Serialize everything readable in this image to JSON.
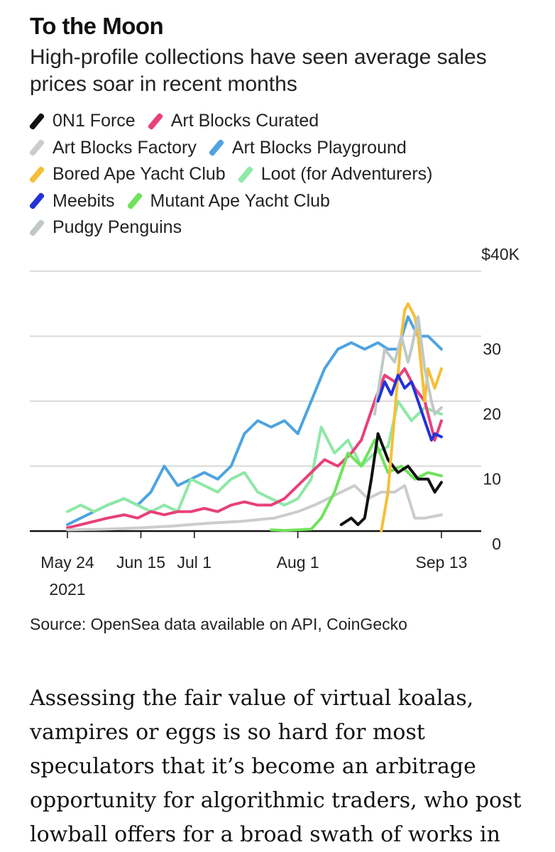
{
  "article": {
    "title": "To the Moon",
    "subtitle": "High-profile collections have seen average sales prices soar in recent months",
    "source": "Source: OpenSea data available on API, CoinGecko",
    "body": "Assessing the fair value of virtual koalas, vampires or eggs is so hard for most speculators that it’s become an arbitrage opportunity for algorithmic traders, who post lowball offers for a broad swath of works in"
  },
  "legend": {
    "rows": [
      [
        {
          "label": "0N1 Force",
          "color": "#111111"
        },
        {
          "label": "Art Blocks Curated",
          "color": "#e8407a"
        }
      ],
      [
        {
          "label": "Art Blocks Factory",
          "color": "#cccccc"
        },
        {
          "label": "Art Blocks Playground",
          "color": "#4fa3e0"
        }
      ],
      [
        {
          "label": "Bored Ape Yacht Club",
          "color": "#f5bf3a"
        },
        {
          "label": "Loot (for Adventurers)",
          "color": "#8ee8a6"
        }
      ],
      [
        {
          "label": "Meebits",
          "color": "#2333d6"
        },
        {
          "label": "Mutant Ape Yacht Club",
          "color": "#6fe35a"
        }
      ],
      [
        {
          "label": "Pudgy Penguins",
          "color": "#bfc9c6"
        }
      ]
    ]
  },
  "chart_data": {
    "type": "line",
    "title": "To the Moon",
    "ylabel": "",
    "ylim": [
      0,
      40
    ],
    "y_ticks": [
      {
        "value": 40,
        "label": "$40K"
      },
      {
        "value": 30,
        "label": "30"
      },
      {
        "value": 20,
        "label": "20"
      },
      {
        "value": 10,
        "label": "10"
      },
      {
        "value": 0,
        "label": "0"
      }
    ],
    "x_domain": [
      "2021-05-24",
      "2021-09-13"
    ],
    "x_ticks": [
      {
        "date": "2021-05-24",
        "label": "May 24",
        "sublabel": "2021"
      },
      {
        "date": "2021-06-15",
        "label": "Jun 15"
      },
      {
        "date": "2021-07-01",
        "label": "Jul 1"
      },
      {
        "date": "2021-08-01",
        "label": "Aug 1"
      },
      {
        "date": "2021-09-13",
        "label": "Sep 13"
      }
    ],
    "unit": "$K",
    "series": [
      {
        "name": "Art Blocks Playground",
        "color": "#4fa3e0",
        "x": [
          "2021-05-24",
          "2021-05-28",
          "2021-06-01",
          "2021-06-05",
          "2021-06-10",
          "2021-06-14",
          "2021-06-18",
          "2021-06-22",
          "2021-06-26",
          "2021-06-30",
          "2021-07-04",
          "2021-07-08",
          "2021-07-12",
          "2021-07-16",
          "2021-07-20",
          "2021-07-24",
          "2021-07-28",
          "2021-08-01",
          "2021-08-05",
          "2021-08-09",
          "2021-08-13",
          "2021-08-17",
          "2021-08-21",
          "2021-08-25",
          "2021-08-28",
          "2021-08-31",
          "2021-09-03",
          "2021-09-06",
          "2021-09-09",
          "2021-09-13"
        ],
        "y": [
          1,
          2,
          3,
          4,
          5,
          4,
          6,
          10,
          7,
          8,
          9,
          8,
          10,
          15,
          17,
          16,
          17,
          15,
          20,
          25,
          28,
          29,
          28,
          29,
          28,
          28,
          33,
          30,
          30,
          28
        ]
      },
      {
        "name": "Loot (for Adventurers)",
        "color": "#8ee8a6",
        "x": [
          "2021-05-24",
          "2021-05-28",
          "2021-06-01",
          "2021-06-05",
          "2021-06-10",
          "2021-06-14",
          "2021-06-18",
          "2021-06-22",
          "2021-06-26",
          "2021-06-30",
          "2021-07-04",
          "2021-07-08",
          "2021-07-12",
          "2021-07-16",
          "2021-07-20",
          "2021-07-24",
          "2021-07-28",
          "2021-08-01",
          "2021-08-05",
          "2021-08-08",
          "2021-08-12",
          "2021-08-16",
          "2021-08-20",
          "2021-08-24",
          "2021-08-28",
          "2021-08-31",
          "2021-09-04",
          "2021-09-08",
          "2021-09-13"
        ],
        "y": [
          3,
          4,
          3,
          4,
          5,
          4,
          3,
          4,
          3,
          8,
          7,
          6,
          8,
          9,
          6,
          5,
          4,
          5,
          8,
          16,
          12,
          14,
          10,
          12,
          13,
          20,
          17,
          19,
          18
        ]
      },
      {
        "name": "Art Blocks Curated",
        "color": "#e8407a",
        "x": [
          "2021-05-24",
          "2021-05-28",
          "2021-06-01",
          "2021-06-05",
          "2021-06-10",
          "2021-06-14",
          "2021-06-18",
          "2021-06-22",
          "2021-06-26",
          "2021-06-30",
          "2021-07-04",
          "2021-07-08",
          "2021-07-12",
          "2021-07-16",
          "2021-07-20",
          "2021-07-24",
          "2021-07-28",
          "2021-08-01",
          "2021-08-05",
          "2021-08-09",
          "2021-08-13",
          "2021-08-17",
          "2021-08-20",
          "2021-08-24",
          "2021-08-27",
          "2021-08-30",
          "2021-09-02",
          "2021-09-05",
          "2021-09-08",
          "2021-09-11",
          "2021-09-13"
        ],
        "y": [
          0.5,
          1,
          1.5,
          2,
          2.5,
          2,
          3,
          2.5,
          3,
          3,
          3.5,
          3,
          4,
          4.5,
          4,
          4,
          5,
          7,
          9,
          11,
          10,
          12,
          14,
          20,
          24,
          23,
          25,
          22,
          20,
          14,
          17
        ]
      },
      {
        "name": "Art Blocks Factory",
        "color": "#cccccc",
        "x": [
          "2021-05-24",
          "2021-06-05",
          "2021-06-15",
          "2021-06-25",
          "2021-07-05",
          "2021-07-15",
          "2021-07-25",
          "2021-08-01",
          "2021-08-06",
          "2021-08-10",
          "2021-08-14",
          "2021-08-18",
          "2021-08-22",
          "2021-08-26",
          "2021-08-30",
          "2021-09-02",
          "2021-09-05",
          "2021-09-08",
          "2021-09-13"
        ],
        "y": [
          0.2,
          0.3,
          0.5,
          0.8,
          1.2,
          1.5,
          2,
          3,
          4,
          5,
          6,
          7,
          5,
          6,
          6,
          7,
          2,
          2,
          2.5
        ]
      },
      {
        "name": "Mutant Ape Yacht Club",
        "color": "#6fe35a",
        "x": [
          "2021-07-24",
          "2021-07-28",
          "2021-08-01",
          "2021-08-05",
          "2021-08-08",
          "2021-08-12",
          "2021-08-16",
          "2021-08-20",
          "2021-08-24",
          "2021-08-28",
          "2021-09-01",
          "2021-09-05",
          "2021-09-09",
          "2021-09-13"
        ],
        "y": [
          0.2,
          0.1,
          0.2,
          0.3,
          2,
          6,
          12,
          10,
          14,
          9,
          10,
          8,
          9,
          8.5
        ]
      },
      {
        "name": "0N1 Force",
        "color": "#111111",
        "x": [
          "2021-08-14",
          "2021-08-17",
          "2021-08-19",
          "2021-08-21",
          "2021-08-23",
          "2021-08-25",
          "2021-08-28",
          "2021-08-31",
          "2021-09-03",
          "2021-09-06",
          "2021-09-09",
          "2021-09-11",
          "2021-09-13"
        ],
        "y": [
          1,
          2,
          1,
          2,
          8,
          15,
          11,
          9,
          10,
          8,
          8,
          6,
          7.5
        ]
      },
      {
        "name": "Bored Ape Yacht Club",
        "color": "#f5bf3a",
        "x": [
          "2021-08-26",
          "2021-08-28",
          "2021-08-30",
          "2021-09-01",
          "2021-09-02",
          "2021-09-03",
          "2021-09-04",
          "2021-09-05",
          "2021-09-06",
          "2021-09-08",
          "2021-09-09",
          "2021-09-11",
          "2021-09-13"
        ],
        "y": [
          0,
          6,
          18,
          30,
          34,
          35,
          34,
          33,
          30,
          20,
          25,
          22,
          25
        ]
      },
      {
        "name": "Pudgy Penguins",
        "color": "#bfc9c6",
        "x": [
          "2021-08-24",
          "2021-08-27",
          "2021-08-30",
          "2021-09-01",
          "2021-09-03",
          "2021-09-04",
          "2021-09-06",
          "2021-09-08",
          "2021-09-10",
          "2021-09-11",
          "2021-09-13"
        ],
        "y": [
          18,
          28,
          26,
          30,
          26,
          28,
          33,
          25,
          20,
          18,
          19
        ]
      },
      {
        "name": "Meebits",
        "color": "#2333d6",
        "x": [
          "2021-08-25",
          "2021-08-27",
          "2021-08-29",
          "2021-08-31",
          "2021-09-02",
          "2021-09-04",
          "2021-09-06",
          "2021-09-08",
          "2021-09-10",
          "2021-09-11",
          "2021-09-13"
        ],
        "y": [
          20,
          23,
          21,
          24,
          22,
          23,
          20,
          17,
          14,
          15,
          14.5
        ]
      }
    ]
  }
}
